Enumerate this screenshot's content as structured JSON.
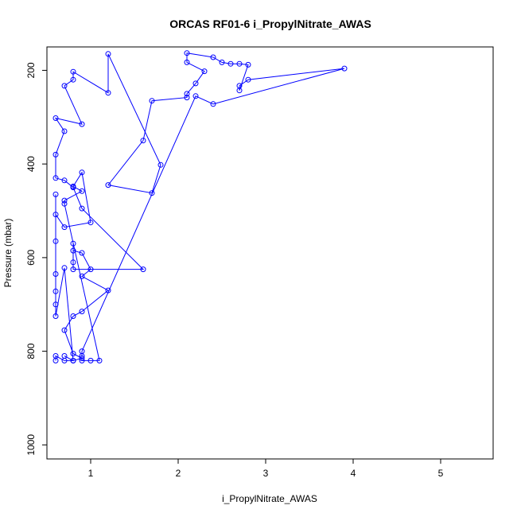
{
  "chart_data": {
    "type": "line",
    "title": "ORCAS RF01-6 i_PropylNitrate_AWAS",
    "xlabel": "i_PropylNitrate_AWAS",
    "ylabel": "Pressure (mbar)",
    "xlim": [
      0.5,
      5.6
    ],
    "ylim": [
      1030,
      150
    ],
    "y_reversed": true,
    "x_ticks": [
      1,
      2,
      3,
      4,
      5
    ],
    "y_ticks": [
      200,
      400,
      600,
      800,
      1000
    ],
    "grid": false,
    "legend": "none",
    "color": "#0000ff",
    "series": [
      {
        "points": [
          [
            0.6,
            820
          ],
          [
            0.6,
            810
          ],
          [
            0.7,
            820
          ],
          [
            0.8,
            820
          ],
          [
            0.9,
            815
          ],
          [
            0.8,
            805
          ],
          [
            0.7,
            755
          ],
          [
            0.8,
            725
          ],
          [
            0.9,
            715
          ],
          [
            1.2,
            670
          ],
          [
            0.9,
            640
          ],
          [
            1.0,
            625
          ],
          [
            0.9,
            590
          ],
          [
            0.8,
            585
          ],
          [
            0.8,
            570
          ],
          [
            0.8,
            610
          ],
          [
            0.8,
            625
          ],
          [
            1.6,
            625
          ],
          [
            0.9,
            495
          ],
          [
            0.8,
            450
          ],
          [
            0.7,
            435
          ],
          [
            0.6,
            430
          ],
          [
            0.6,
            380
          ],
          [
            0.7,
            330
          ],
          [
            0.6,
            302
          ],
          [
            0.9,
            315
          ],
          [
            0.7,
            233
          ],
          [
            0.8,
            220
          ],
          [
            0.8,
            203
          ],
          [
            1.2,
            248
          ],
          [
            1.2,
            165
          ],
          [
            1.8,
            402
          ],
          [
            1.7,
            462
          ],
          [
            1.2,
            445
          ],
          [
            1.6,
            350
          ],
          [
            1.7,
            265
          ],
          [
            2.1,
            258
          ],
          [
            2.1,
            250
          ],
          [
            2.2,
            228
          ],
          [
            2.3,
            202
          ],
          [
            2.1,
            183
          ],
          [
            2.1,
            163
          ],
          [
            2.4,
            172
          ],
          [
            2.5,
            183
          ],
          [
            2.6,
            186
          ],
          [
            2.7,
            186
          ],
          [
            2.8,
            188
          ],
          [
            2.7,
            243
          ],
          [
            2.7,
            233
          ],
          [
            2.8,
            220
          ],
          [
            3.9,
            196
          ],
          [
            2.4,
            272
          ],
          [
            2.2,
            255
          ],
          [
            0.9,
            800
          ],
          [
            0.9,
            810
          ],
          [
            0.9,
            820
          ],
          [
            1.0,
            820
          ],
          [
            1.1,
            820
          ],
          [
            0.7,
            485
          ],
          [
            0.7,
            478
          ],
          [
            0.9,
            458
          ],
          [
            0.8,
            448
          ],
          [
            0.9,
            418
          ],
          [
            1.0,
            525
          ],
          [
            0.7,
            535
          ],
          [
            0.6,
            508
          ],
          [
            0.6,
            465
          ],
          [
            0.6,
            565
          ],
          [
            0.6,
            635
          ],
          [
            0.6,
            700
          ],
          [
            0.6,
            672
          ],
          [
            0.6,
            725
          ],
          [
            0.7,
            622
          ],
          [
            0.8,
            820
          ],
          [
            0.7,
            810
          ]
        ]
      }
    ]
  }
}
